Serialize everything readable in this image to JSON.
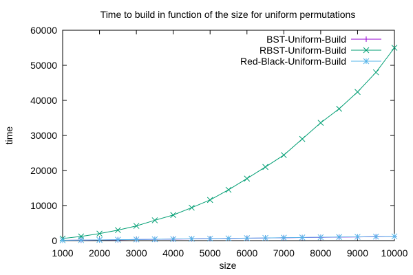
{
  "chart_data": {
    "type": "line",
    "title": "Time to build in function of the size for uniform permutations",
    "xlabel": "size",
    "ylabel": "time",
    "xlim": [
      1000,
      10000
    ],
    "ylim": [
      0,
      60000
    ],
    "x_ticks": [
      "1000",
      "2000",
      "3000",
      "4000",
      "5000",
      "6000",
      "7000",
      "8000",
      "9000",
      "10000"
    ],
    "y_ticks": [
      "0",
      "10000",
      "20000",
      "30000",
      "40000",
      "50000",
      "60000"
    ],
    "grid": false,
    "legend_position": "top-right",
    "x": [
      1000,
      1500,
      2000,
      2500,
      3000,
      3500,
      4000,
      4500,
      5000,
      5500,
      6000,
      6500,
      7000,
      7500,
      8000,
      8500,
      9000,
      9500,
      10000
    ],
    "series": [
      {
        "name": "BST-Uniform-Build",
        "color": "#9400d3",
        "marker": "plus",
        "values": [
          90,
          140,
          190,
          250,
          320,
          370,
          430,
          500,
          560,
          620,
          690,
          750,
          820,
          880,
          940,
          1000,
          1060,
          1120,
          1180
        ]
      },
      {
        "name": "RBST-Uniform-Build",
        "color": "#009e73",
        "marker": "cross",
        "values": [
          600,
          1200,
          2000,
          3000,
          4200,
          5800,
          7300,
          9400,
          11600,
          14500,
          17700,
          21000,
          24400,
          29000,
          33600,
          37600,
          42400,
          48000,
          55000
        ]
      },
      {
        "name": "Red-Black-Uniform-Build",
        "color": "#56b4e9",
        "marker": "star",
        "values": [
          100,
          150,
          200,
          260,
          330,
          390,
          450,
          520,
          580,
          640,
          710,
          770,
          840,
          900,
          970,
          1030,
          1090,
          1150,
          1210
        ]
      }
    ]
  }
}
